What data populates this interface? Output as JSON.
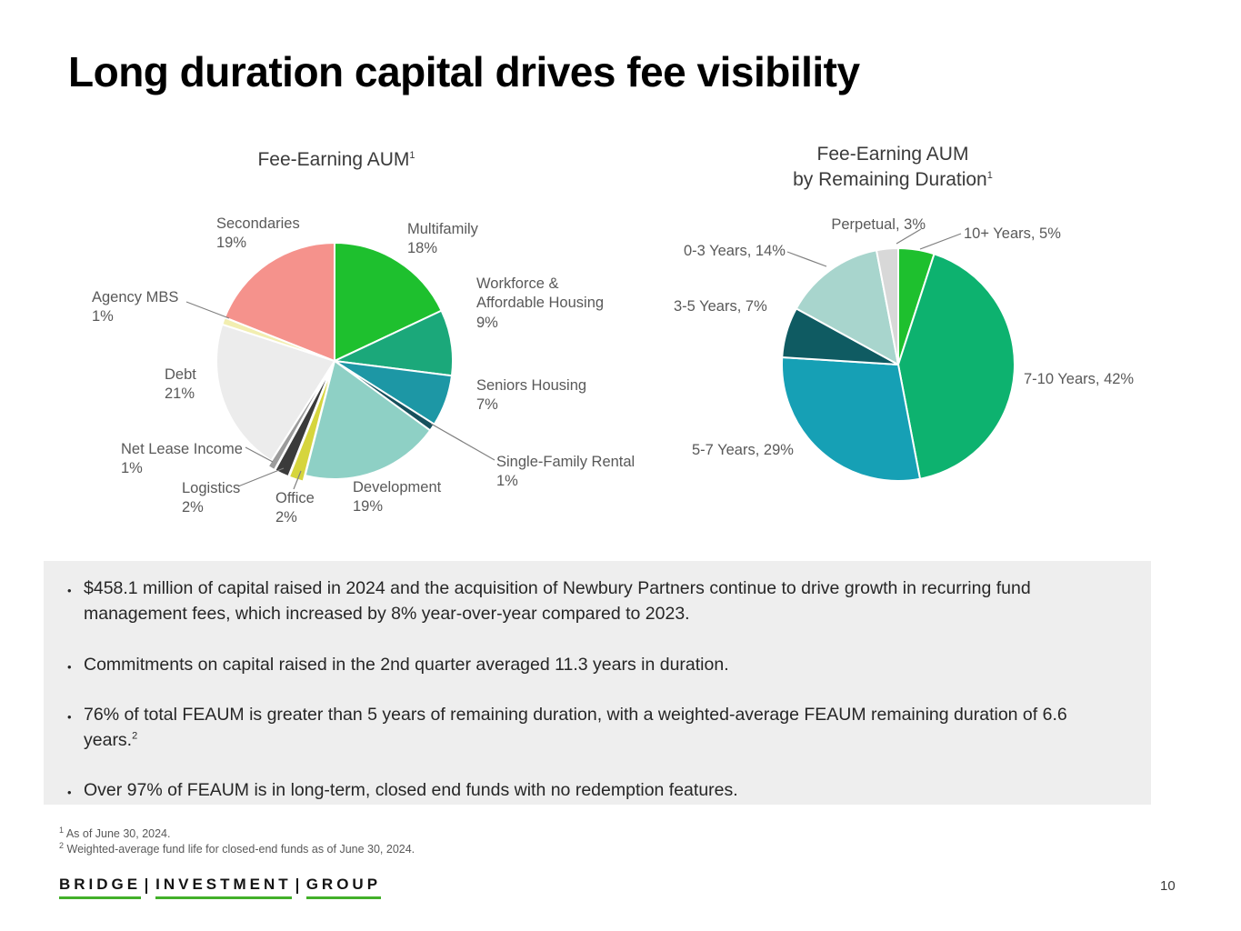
{
  "page": {
    "title": "Long duration capital drives fee visibility",
    "page_number": "10"
  },
  "footnotes": [
    {
      "sup": "1",
      "text": "As of June 30, 2024."
    },
    {
      "sup": "2",
      "text": "Weighted-average fund life for closed-end funds as of June 30, 2024."
    }
  ],
  "logo": {
    "words": [
      "BRIDGE",
      "INVESTMENT",
      "GROUP"
    ],
    "underline_color": "#43b02a"
  },
  "bullets": [
    {
      "text": "$458.1 million of capital raised in 2024 and the acquisition of Newbury Partners continue to drive growth in recurring fund management fees, which increased by 8% year-over-year compared to 2023.",
      "sup": ""
    },
    {
      "text": "Commitments on capital raised in the 2nd quarter averaged 11.3 years in duration.",
      "sup": ""
    },
    {
      "text": "76% of total FEAUM is greater than 5 years of remaining duration, with a weighted-average FEAUM remaining duration of 6.6 years.",
      "sup": "2"
    },
    {
      "text": "Over 97% of FEAUM is in long-term, closed end funds with no redemption features.",
      "sup": ""
    }
  ],
  "chart_data": [
    {
      "type": "pie",
      "title": "Fee-Earning AUM",
      "title_sup": "1",
      "unit": "percent",
      "start_angle_deg": 0,
      "clockwise": true,
      "legend": "none",
      "labels": "outside",
      "slices": [
        {
          "label": "Multifamily",
          "value": 18,
          "color": "#1ec02e",
          "display": "Multifamily\n18%"
        },
        {
          "label": "Workforce & Affordable Housing",
          "value": 9,
          "color": "#1ba87a",
          "display": "Workforce &\nAffordable Housing\n9%"
        },
        {
          "label": "Seniors Housing",
          "value": 7,
          "color": "#1d97a5",
          "display": "Seniors Housing\n7%"
        },
        {
          "label": "Single-Family Rental",
          "value": 1,
          "color": "#16505c",
          "display": "Single-Family Rental\n1%"
        },
        {
          "label": "Development",
          "value": 19,
          "color": "#8ed0c5",
          "display": "Development\n19%"
        },
        {
          "label": "Office",
          "value": 2,
          "color": "#d6d53d",
          "explode": true,
          "display": "Office\n2%"
        },
        {
          "label": "Logistics",
          "value": 2,
          "color": "#3b3b3b",
          "explode": true,
          "display": "Logistics\n2%"
        },
        {
          "label": "Net Lease Income",
          "value": 1,
          "color": "#9c9c9c",
          "explode": true,
          "display": "Net Lease Income\n1%"
        },
        {
          "label": "Debt",
          "value": 21,
          "color": "#ececec",
          "display": "Debt\n21%"
        },
        {
          "label": "Agency MBS",
          "value": 1,
          "color": "#f2eeb0",
          "display": "Agency MBS\n1%"
        },
        {
          "label": "Secondaries",
          "value": 19,
          "color": "#f5928c",
          "display": "Secondaries\n19%"
        }
      ]
    },
    {
      "type": "pie",
      "title": "Fee-Earning AUM by Remaining Duration",
      "title_l1": "Fee-Earning AUM",
      "title_l2": "by Remaining Duration",
      "title_sup": "1",
      "unit": "percent",
      "start_angle_deg": 0,
      "clockwise": true,
      "legend": "none",
      "labels": "outside",
      "slices": [
        {
          "label": "10+ Years",
          "value": 5,
          "color": "#1ec02e",
          "display": "10+ Years, 5%"
        },
        {
          "label": "7-10 Years",
          "value": 42,
          "color": "#0db26f",
          "display": "7-10 Years, 42%"
        },
        {
          "label": "5-7 Years",
          "value": 29,
          "color": "#16a0b5",
          "display": "5-7 Years, 29%"
        },
        {
          "label": "3-5 Years",
          "value": 7,
          "color": "#0f5b62",
          "display": "3-5 Years, 7%"
        },
        {
          "label": "0-3 Years",
          "value": 14,
          "color": "#a8d5cd",
          "display": "0-3 Years, 14%"
        },
        {
          "label": "Perpetual",
          "value": 3,
          "color": "#d8d8d8",
          "display": "Perpetual, 3%"
        }
      ]
    }
  ]
}
